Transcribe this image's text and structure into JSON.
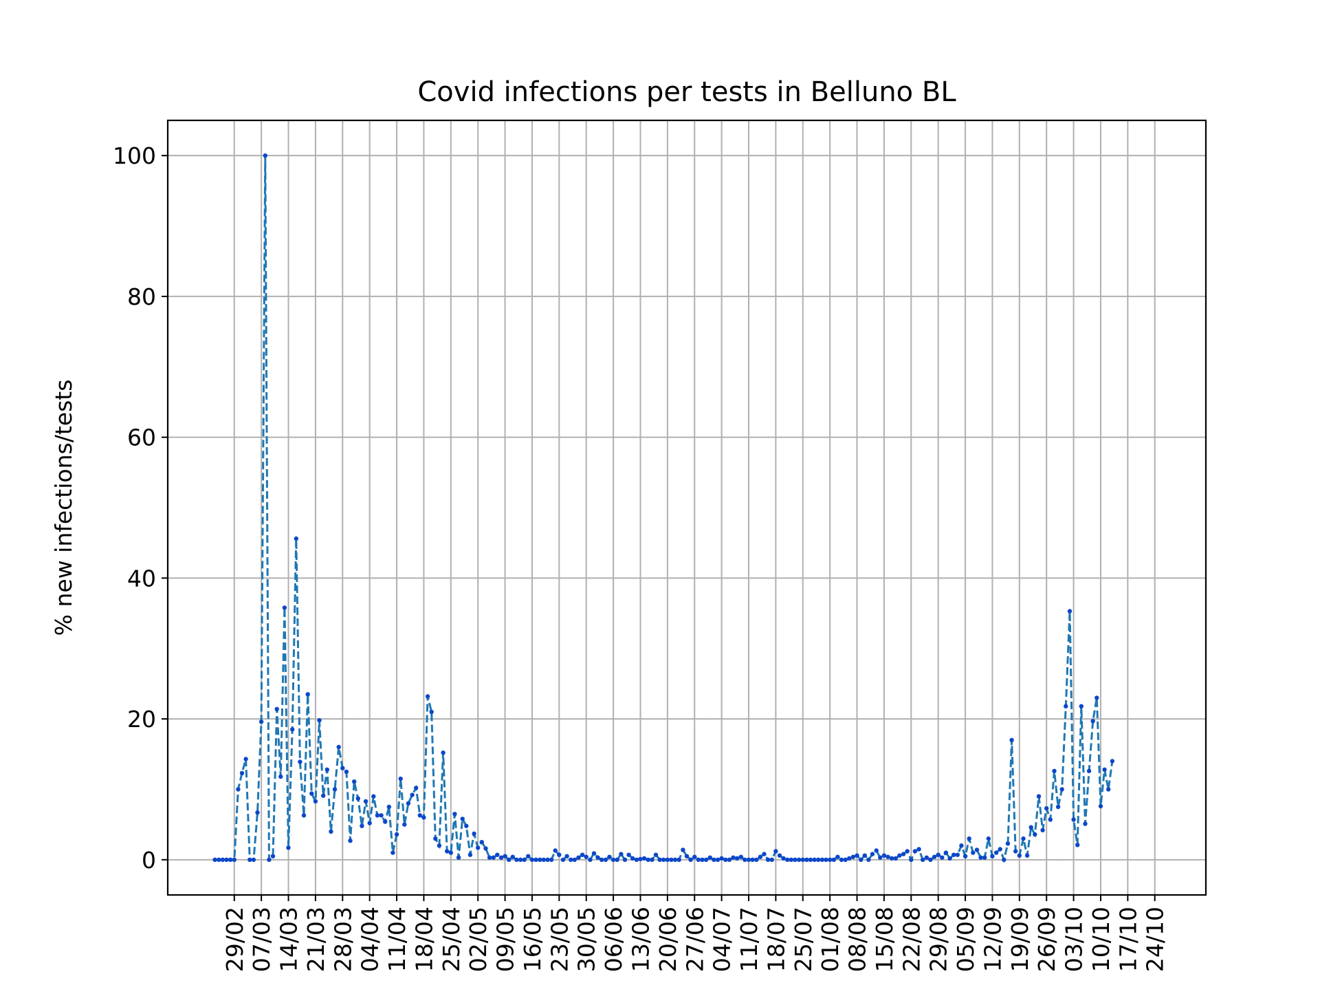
{
  "chart_data": {
    "type": "line",
    "title": "Covid infections per tests in Belluno BL",
    "xlabel": "",
    "ylabel": "% new infections/tests",
    "x_start": "2020-02-24",
    "x_end": "2020-10-25",
    "x_tick_dates": [
      "2020-02-29",
      "2020-03-07",
      "2020-03-14",
      "2020-03-21",
      "2020-03-28",
      "2020-04-04",
      "2020-04-11",
      "2020-04-18",
      "2020-04-25",
      "2020-05-02",
      "2020-05-09",
      "2020-05-16",
      "2020-05-23",
      "2020-05-30",
      "2020-06-06",
      "2020-06-13",
      "2020-06-20",
      "2020-06-27",
      "2020-07-04",
      "2020-07-11",
      "2020-07-18",
      "2020-07-25",
      "2020-08-01",
      "2020-08-08",
      "2020-08-15",
      "2020-08-22",
      "2020-08-29",
      "2020-09-05",
      "2020-09-12",
      "2020-09-19",
      "2020-09-26",
      "2020-10-03",
      "2020-10-10",
      "2020-10-17",
      "2020-10-24"
    ],
    "x_tick_labels": [
      "29/02",
      "07/03",
      "14/03",
      "21/03",
      "28/03",
      "04/04",
      "11/04",
      "18/04",
      "25/04",
      "02/05",
      "09/05",
      "16/05",
      "23/05",
      "30/05",
      "06/06",
      "13/06",
      "20/06",
      "27/06",
      "04/07",
      "11/07",
      "18/07",
      "25/07",
      "01/08",
      "08/08",
      "15/08",
      "22/08",
      "29/08",
      "05/09",
      "12/09",
      "19/09",
      "26/09",
      "03/10",
      "10/10",
      "17/10",
      "24/10"
    ],
    "y_ticks": [
      0,
      20,
      40,
      60,
      80,
      100
    ],
    "ylim": [
      -5,
      105
    ],
    "grid": true,
    "series": [
      {
        "color": "#1f77b4",
        "marker_color": "#0d47c9",
        "values": [
          0,
          0,
          0,
          0,
          0,
          0,
          10,
          12.3,
          14.3,
          0,
          0,
          6.7,
          19.6,
          100,
          0,
          0.5,
          21.4,
          11.8,
          35.8,
          1.7,
          18.5,
          45.6,
          13.9,
          6.3,
          23.5,
          9.4,
          8.3,
          19.8,
          9.1,
          12.8,
          4,
          10,
          16,
          13,
          12.5,
          2.7,
          11.1,
          8.7,
          4.8,
          8.3,
          5.2,
          9,
          6.3,
          6.3,
          5.4,
          7.5,
          1,
          3.6,
          11.5,
          5,
          8,
          9.2,
          10.2,
          6.3,
          6,
          23.2,
          21,
          3,
          2,
          15.2,
          1.2,
          1,
          6.5,
          0.3,
          5.8,
          4.8,
          0.7,
          3.7,
          1.7,
          2.5,
          1.6,
          0.3,
          0.3,
          0.7,
          0.3,
          0.5,
          0,
          0.4,
          0,
          0,
          0,
          0.5,
          0,
          0,
          0,
          0,
          0,
          0,
          1.3,
          0.7,
          0,
          0.5,
          0,
          0,
          0.3,
          0.7,
          0.4,
          0,
          0.9,
          0.3,
          0,
          0,
          0.4,
          0,
          0,
          0.8,
          0,
          0.7,
          0.2,
          0,
          0.1,
          0.2,
          0,
          0,
          0.7,
          0,
          0,
          0,
          0,
          0,
          0,
          1.4,
          0.5,
          0,
          0.4,
          0,
          0,
          0,
          0.3,
          0,
          0,
          0.2,
          0,
          0,
          0.3,
          0.2,
          0.4,
          0,
          0,
          0,
          0,
          0.4,
          0.8,
          0,
          0,
          1.2,
          0.6,
          0.2,
          0,
          0,
          0,
          0,
          0,
          0,
          0,
          0,
          0,
          0,
          0,
          0,
          0,
          0.4,
          0,
          0,
          0.2,
          0.4,
          0.6,
          0,
          0.6,
          0,
          0.8,
          1.3,
          0.3,
          0.6,
          0.4,
          0.2,
          0.2,
          0.6,
          0.8,
          1.2,
          0,
          1.2,
          1.5,
          0,
          0.3,
          0,
          0.4,
          0.7,
          0.3,
          1,
          0.2,
          0.7,
          0.7,
          2,
          0.5,
          3,
          1,
          1.4,
          0.3,
          0.3,
          3,
          0.5,
          1,
          1.5,
          0,
          2.3,
          17,
          1.2,
          0.6,
          3,
          0.6,
          4.6,
          3.6,
          9,
          4.2,
          7.3,
          5.7,
          12.6,
          7.5,
          10,
          21.8,
          35.3,
          5.7,
          2.1,
          21.8,
          5.1,
          12.6,
          19.7,
          23,
          7.6,
          12.8,
          10,
          14
        ]
      }
    ]
  }
}
